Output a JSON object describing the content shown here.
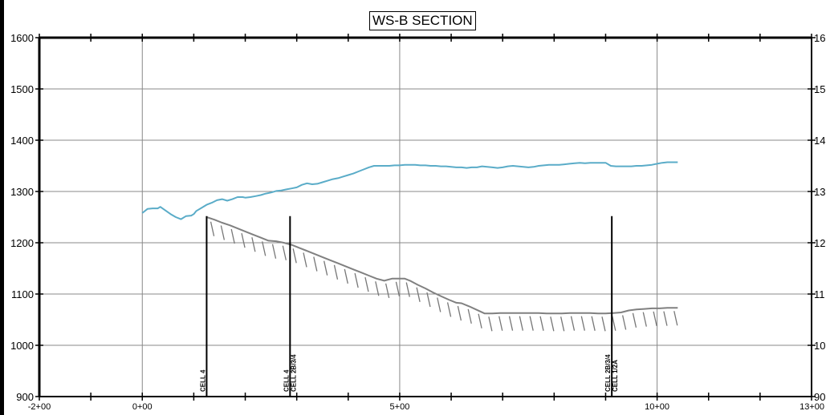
{
  "chart_data": {
    "type": "line",
    "title": "WS-B SECTION",
    "xlabel": "",
    "ylabel": "",
    "xlim": [
      -200,
      1300
    ],
    "ylim": [
      900,
      1600
    ],
    "grid": true,
    "x_tick_labels": [
      {
        "x": -200,
        "label": "-2+00"
      },
      {
        "x": 0,
        "label": "0+00"
      },
      {
        "x": 500,
        "label": "5+00"
      },
      {
        "x": 1000,
        "label": "10+00"
      },
      {
        "x": 1300,
        "label": "13+00"
      }
    ],
    "y_tick_labels": [
      {
        "y": 900,
        "label": "900"
      },
      {
        "y": 1000,
        "label": "1000"
      },
      {
        "y": 1100,
        "label": "1100"
      },
      {
        "y": 1200,
        "label": "1200"
      },
      {
        "y": 1300,
        "label": "1300"
      },
      {
        "y": 1400,
        "label": "1400"
      },
      {
        "y": 1500,
        "label": "1500"
      },
      {
        "y": 1600,
        "label": "1600"
      }
    ],
    "right_y_tick_labels": [
      {
        "y": 900,
        "label": "90"
      },
      {
        "y": 1000,
        "label": "10"
      },
      {
        "y": 1100,
        "label": "11"
      },
      {
        "y": 1200,
        "label": "12"
      },
      {
        "y": 1300,
        "label": "13"
      },
      {
        "y": 1400,
        "label": "14"
      },
      {
        "y": 1500,
        "label": "15"
      },
      {
        "y": 1600,
        "label": "16"
      }
    ],
    "series": [
      {
        "color": "#5aacc8",
        "x": [
          0,
          10,
          20,
          30,
          35,
          45,
          55,
          65,
          75,
          85,
          95,
          100,
          105,
          115,
          125,
          135,
          145,
          155,
          165,
          175,
          185,
          195,
          200,
          210,
          220,
          230,
          240,
          250,
          260,
          270,
          280,
          290,
          300,
          310,
          320,
          330,
          340,
          350,
          360,
          370,
          380,
          390,
          400,
          410,
          420,
          430,
          440,
          450,
          460,
          470,
          480,
          490,
          500,
          510,
          520,
          530,
          540,
          550,
          560,
          570,
          580,
          590,
          600,
          610,
          620,
          630,
          640,
          650,
          660,
          670,
          680,
          690,
          700,
          710,
          720,
          730,
          740,
          750,
          760,
          770,
          780,
          790,
          800,
          810,
          820,
          830,
          840,
          850,
          860,
          870,
          880,
          890,
          900,
          910,
          920,
          930,
          940,
          950,
          960,
          970,
          980,
          990,
          1000,
          1010,
          1020,
          1030,
          1040
        ],
        "y": [
          1258,
          1266,
          1267,
          1267,
          1270,
          1263,
          1256,
          1250,
          1246,
          1252,
          1253,
          1256,
          1262,
          1268,
          1274,
          1278,
          1283,
          1285,
          1282,
          1285,
          1289,
          1289,
          1288,
          1289,
          1291,
          1293,
          1296,
          1298,
          1301,
          1302,
          1304,
          1306,
          1308,
          1313,
          1316,
          1314,
          1315,
          1318,
          1321,
          1324,
          1326,
          1329,
          1332,
          1335,
          1339,
          1343,
          1347,
          1350,
          1350,
          1350,
          1350,
          1351,
          1351,
          1352,
          1352,
          1352,
          1351,
          1351,
          1350,
          1350,
          1349,
          1349,
          1348,
          1347,
          1347,
          1346,
          1347,
          1347,
          1349,
          1348,
          1347,
          1346,
          1347,
          1349,
          1350,
          1349,
          1348,
          1347,
          1348,
          1350,
          1351,
          1352,
          1352,
          1352,
          1353,
          1354,
          1355,
          1356,
          1355,
          1356,
          1356,
          1356,
          1356,
          1350,
          1349,
          1349,
          1349,
          1349,
          1350,
          1350,
          1351,
          1352,
          1354,
          1356,
          1357,
          1357,
          1357
        ]
      },
      {
        "color": "#808080",
        "x": [
          125,
          140,
          155,
          170,
          185,
          200,
          215,
          230,
          245,
          260,
          275,
          290,
          305,
          320,
          335,
          350,
          365,
          380,
          395,
          410,
          425,
          440,
          455,
          470,
          485,
          500,
          510,
          520,
          535,
          550,
          565,
          580,
          595,
          610,
          620,
          635,
          650,
          665,
          680,
          695,
          710,
          725,
          740,
          755,
          770,
          785,
          800,
          815,
          830,
          845,
          860,
          870,
          885,
          900,
          915,
          930,
          945,
          960,
          975,
          990,
          1005,
          1020,
          1040
        ],
        "y": [
          1250,
          1245,
          1239,
          1234,
          1228,
          1222,
          1216,
          1210,
          1204,
          1203,
          1200,
          1196,
          1190,
          1184,
          1178,
          1172,
          1166,
          1160,
          1154,
          1148,
          1142,
          1136,
          1130,
          1126,
          1130,
          1130,
          1130,
          1126,
          1118,
          1111,
          1103,
          1096,
          1089,
          1083,
          1082,
          1076,
          1069,
          1062,
          1062,
          1063,
          1063,
          1063,
          1063,
          1063,
          1063,
          1062,
          1062,
          1062,
          1063,
          1063,
          1063,
          1063,
          1062,
          1062,
          1063,
          1064,
          1068,
          1070,
          1071,
          1072,
          1072,
          1073,
          1073
        ]
      }
    ],
    "markers": [
      {
        "x": 125,
        "y_top": 1252,
        "label": "CELL 4"
      },
      {
        "x": 287,
        "y_top": 1252,
        "label": "CELL 4\nCELL 2B/3/4"
      },
      {
        "x": 912,
        "y_top": 1252,
        "label": "CELL 2B/3/4\nCELL 1/2A"
      }
    ]
  }
}
